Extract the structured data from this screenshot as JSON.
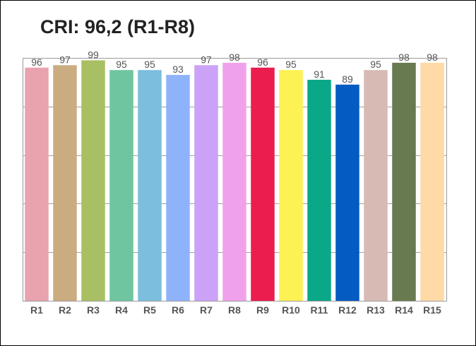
{
  "chart_data": {
    "type": "bar",
    "title": "CRI: 96,2 (R1-R8)",
    "xlabel": "",
    "ylabel": "",
    "categories": [
      "R1",
      "R2",
      "R3",
      "R4",
      "R5",
      "R6",
      "R7",
      "R8",
      "R9",
      "R10",
      "R11",
      "R12",
      "R13",
      "R14",
      "R15"
    ],
    "values": [
      96,
      97,
      99,
      95,
      95,
      93,
      97,
      98,
      96,
      95,
      91,
      89,
      95,
      98,
      98
    ],
    "colors": [
      "#E8A3AE",
      "#CBAC80",
      "#A9BF63",
      "#6FC5A0",
      "#7CBEDE",
      "#8EB3FA",
      "#CBA2F7",
      "#EFA2EB",
      "#EB1D4E",
      "#FDF253",
      "#0BA888",
      "#045BC1",
      "#D8BAB5",
      "#687A4F",
      "#FFD9A6"
    ],
    "ylim": [
      0,
      100
    ],
    "grid": true,
    "legend": "none"
  }
}
